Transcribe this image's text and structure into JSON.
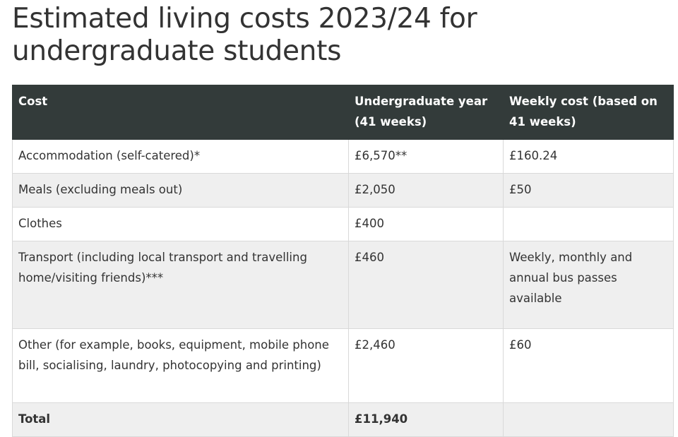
{
  "page": {
    "title": "Estimated living costs 2023/24 for undergraduate students"
  },
  "table": {
    "headers": [
      "Cost",
      "Undergraduate year (41 weeks)",
      "Weekly cost (based on 41 weeks)"
    ],
    "rows": [
      [
        "Accommodation (self-catered)*",
        "£6,570**",
        "£160.24"
      ],
      [
        "Meals (excluding meals out)",
        "£2,050",
        "£50"
      ],
      [
        "Clothes",
        "£400",
        ""
      ],
      [
        "Transport (including local transport and travelling home/visiting friends)***",
        "£460",
        "Weekly, monthly and annual bus passes available"
      ],
      [
        "Other (for example, books, equipment, mobile phone bill, socialising, laundry, photocopying and printing)",
        "£2,460",
        "£60"
      ],
      [
        "Total",
        "£11,940",
        ""
      ]
    ]
  },
  "colors": {
    "header_bg": "#333b3a",
    "header_text": "#ffffff",
    "row_alt_bg": "#efefef",
    "text": "#333333",
    "border": "#d9d9d9"
  }
}
